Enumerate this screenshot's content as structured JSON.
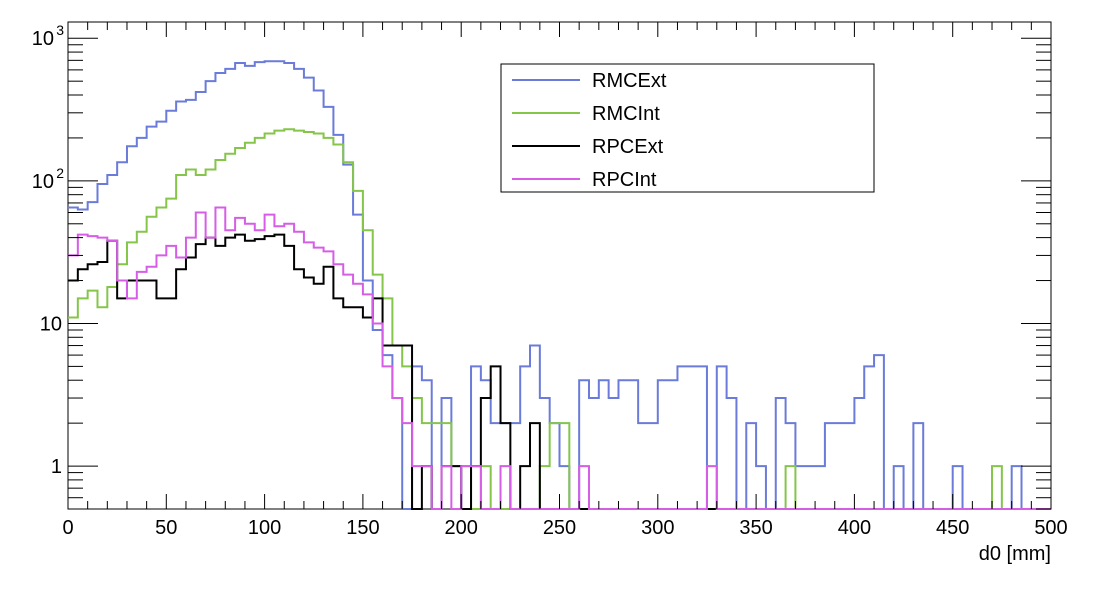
{
  "chart_data": {
    "type": "line",
    "style": "step-histogram",
    "title": "",
    "xlabel": "d0 [mm]",
    "ylabel": "",
    "xlim": [
      0,
      500
    ],
    "ylim": [
      0.5,
      1300
    ],
    "yscale": "log",
    "grid": false,
    "legend_position": "top-center",
    "bin_width": 5,
    "x_ticks": [
      {
        "value": 0,
        "label": "0"
      },
      {
        "value": 50,
        "label": "50"
      },
      {
        "value": 100,
        "label": "100"
      },
      {
        "value": 150,
        "label": "150"
      },
      {
        "value": 200,
        "label": "200"
      },
      {
        "value": 250,
        "label": "250"
      },
      {
        "value": 300,
        "label": "300"
      },
      {
        "value": 350,
        "label": "350"
      },
      {
        "value": 400,
        "label": "400"
      },
      {
        "value": 450,
        "label": "450"
      },
      {
        "value": 500,
        "label": "500"
      }
    ],
    "y_ticks": [
      {
        "value": 1,
        "label": "1"
      },
      {
        "value": 10,
        "label": "10"
      },
      {
        "value": 100,
        "label": "10",
        "exponent": "2"
      },
      {
        "value": 1000,
        "label": "10",
        "exponent": "3"
      }
    ],
    "series": [
      {
        "name": "RMCExt",
        "color": "#6a7bd9",
        "values": [
          65,
          63,
          71,
          95,
          110,
          135,
          175,
          200,
          240,
          260,
          310,
          360,
          370,
          420,
          500,
          570,
          610,
          670,
          640,
          680,
          690,
          690,
          670,
          610,
          530,
          430,
          330,
          210,
          130,
          58,
          20,
          9,
          6,
          3,
          0.5,
          5,
          4,
          0.5,
          3,
          1,
          0,
          5,
          4,
          2,
          2,
          2,
          5,
          7,
          3,
          2,
          1,
          0,
          4,
          3,
          4,
          3,
          4,
          4,
          2,
          2,
          4,
          4,
          5,
          5,
          5,
          0,
          5,
          3,
          0,
          2,
          1,
          0,
          3,
          2,
          1,
          1,
          1,
          2,
          2,
          2,
          3,
          5,
          6,
          0,
          1,
          0,
          2,
          0,
          0,
          0,
          1,
          0,
          0,
          0,
          0,
          0,
          1,
          0,
          0,
          0
        ]
      },
      {
        "name": "RMCInt",
        "color": "#84c54a",
        "values": [
          11,
          15,
          17,
          13,
          18,
          26,
          37,
          44,
          56,
          65,
          75,
          110,
          120,
          110,
          120,
          140,
          155,
          170,
          185,
          200,
          215,
          225,
          230,
          225,
          220,
          215,
          200,
          180,
          135,
          85,
          45,
          22,
          15,
          7,
          5,
          3,
          2,
          2,
          2,
          1,
          1,
          0,
          1,
          0,
          0,
          0,
          0,
          0,
          1,
          2,
          2,
          0,
          0,
          0,
          0,
          0,
          0,
          0,
          0,
          0,
          0,
          0,
          0,
          0,
          0,
          0,
          0,
          0,
          0,
          0,
          0,
          0,
          0,
          1,
          0,
          0,
          0,
          0,
          0,
          0,
          0,
          0,
          0,
          0,
          0,
          0,
          0,
          0,
          0,
          0,
          0,
          0,
          0,
          0,
          1,
          0,
          0,
          0,
          0,
          0
        ]
      },
      {
        "name": "RPCExt",
        "color": "#000000",
        "values": [
          20,
          24,
          26,
          27,
          38,
          15,
          20,
          20,
          20,
          15,
          15,
          24,
          29,
          36,
          40,
          35,
          40,
          42,
          38,
          39,
          41,
          42,
          35,
          24,
          21,
          19,
          25,
          15,
          13,
          13,
          11,
          15,
          7,
          7,
          7,
          0,
          1,
          0,
          1,
          1,
          0,
          1,
          3,
          5,
          2,
          0,
          1,
          2,
          0,
          0,
          0,
          0,
          0,
          0,
          0,
          0,
          0,
          0,
          0,
          0,
          0,
          0,
          0,
          0,
          0,
          0,
          0,
          0,
          0,
          0,
          0,
          0,
          0,
          0,
          0,
          0,
          0,
          0,
          0,
          0,
          0,
          0,
          0,
          0,
          0,
          0,
          0,
          0,
          0,
          0,
          0,
          0,
          0,
          0,
          0,
          0,
          0,
          0,
          0,
          0
        ]
      },
      {
        "name": "RPCInt",
        "color": "#d65de6",
        "values": [
          30,
          42,
          41,
          40,
          38,
          20,
          15,
          23,
          25,
          30,
          35,
          29,
          40,
          60,
          40,
          65,
          45,
          55,
          50,
          45,
          58,
          48,
          50,
          44,
          37,
          34,
          32,
          26,
          22,
          19,
          16,
          10,
          5,
          3,
          2,
          1,
          1,
          0,
          1,
          0,
          1,
          1,
          0,
          0,
          1,
          0,
          0,
          0,
          0,
          0,
          0,
          0,
          1,
          0,
          0,
          0,
          0,
          0,
          0,
          0,
          0,
          0,
          0,
          0,
          0,
          1,
          0,
          0,
          0,
          0,
          0,
          0,
          0,
          0,
          0,
          0,
          0,
          0,
          0,
          0,
          0,
          0,
          0,
          0,
          0,
          0,
          0,
          0,
          0,
          0,
          0,
          0,
          0,
          0,
          0,
          0,
          0,
          0,
          0,
          0
        ]
      }
    ]
  }
}
